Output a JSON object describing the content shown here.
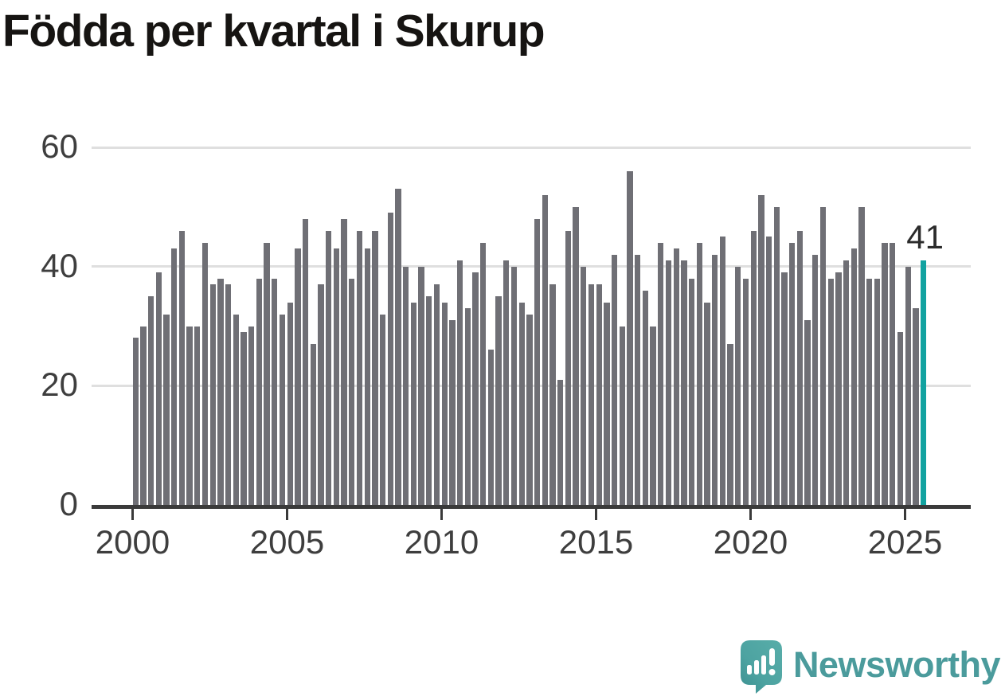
{
  "title": "Födda per kvartal i Skurup",
  "chart_data": {
    "type": "bar",
    "title": "Födda per kvartal i Skurup",
    "x_start_period": "2000-Q1",
    "x_end_period": "2025-Q3",
    "periodicity": "quarterly",
    "values": [
      28,
      30,
      35,
      39,
      32,
      43,
      46,
      30,
      30,
      44,
      37,
      38,
      37,
      32,
      29,
      30,
      38,
      44,
      38,
      32,
      34,
      43,
      48,
      27,
      37,
      46,
      43,
      48,
      38,
      46,
      43,
      46,
      32,
      49,
      53,
      40,
      34,
      40,
      35,
      37,
      34,
      31,
      41,
      33,
      39,
      44,
      26,
      35,
      41,
      40,
      34,
      32,
      48,
      52,
      37,
      21,
      46,
      50,
      40,
      37,
      37,
      34,
      42,
      30,
      56,
      42,
      36,
      30,
      44,
      41,
      43,
      41,
      38,
      44,
      34,
      42,
      45,
      27,
      40,
      38,
      46,
      52,
      45,
      50,
      39,
      44,
      46,
      31,
      42,
      50,
      38,
      39,
      41,
      43,
      50,
      38,
      38,
      44,
      44,
      29,
      40,
      33,
      41
    ],
    "x_tick_years": [
      2000,
      2005,
      2010,
      2015,
      2020,
      2025
    ],
    "x_tick_labels": [
      "2000",
      "2005",
      "2010",
      "2015",
      "2020",
      "2025"
    ],
    "y_tick_values": [
      0,
      20,
      40,
      60
    ],
    "y_tick_labels": [
      "0",
      "20",
      "40",
      "60"
    ],
    "ylim": [
      0,
      60
    ],
    "grid_values": [
      20,
      40,
      60
    ],
    "grid_on": true,
    "legend": "none",
    "highlight_last_bar": true,
    "last_value_label": "41",
    "bar_color": "#6f6f75",
    "highlight_color": "#12a2a0",
    "axis_color": "#3a3a3a",
    "grid_color": "#dfdfdf",
    "tick_label_color": "#3e3e3e"
  },
  "branding": {
    "name": "Newsworthy",
    "color": "#4b9b9c",
    "icon": "speech-bubble-bar-chart-exclamation"
  }
}
